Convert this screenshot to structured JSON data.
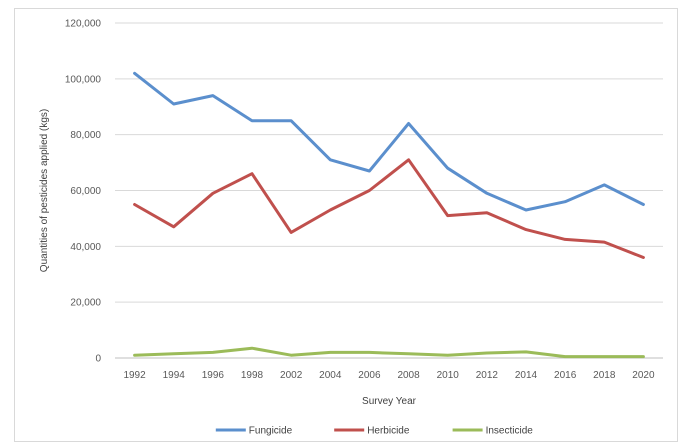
{
  "chart_data": {
    "type": "line",
    "title": "",
    "xlabel": "Survey Year",
    "ylabel": "Quantities of pesticides applied (kgs)",
    "categories": [
      "1992",
      "1994",
      "1996",
      "1998",
      "2002",
      "2004",
      "2006",
      "2008",
      "2010",
      "2012",
      "2014",
      "2016",
      "2018",
      "2020"
    ],
    "ylim": [
      0,
      120000
    ],
    "yticks": [
      "0",
      "20,000",
      "40,000",
      "60,000",
      "80,000",
      "100,000",
      "120,000"
    ],
    "ytick_values": [
      0,
      20000,
      40000,
      60000,
      80000,
      100000,
      120000
    ],
    "grid": true,
    "legend_position": "bottom",
    "series": [
      {
        "name": "Fungicide",
        "color": "#5b8fcd",
        "values": [
          102000,
          91000,
          94000,
          85000,
          85000,
          71000,
          67000,
          84000,
          68000,
          59000,
          53000,
          56000,
          62000,
          55000
        ]
      },
      {
        "name": "Herbicide",
        "color": "#c0504d",
        "values": [
          55000,
          47000,
          59000,
          66000,
          45000,
          53000,
          60000,
          71000,
          51000,
          52000,
          46000,
          42500,
          41500,
          36000
        ]
      },
      {
        "name": "Insecticide",
        "color": "#9bbb59",
        "values": [
          1000,
          1500,
          2000,
          3500,
          1000,
          2000,
          2000,
          1500,
          1000,
          1800,
          2200,
          500,
          500,
          500
        ]
      }
    ]
  }
}
